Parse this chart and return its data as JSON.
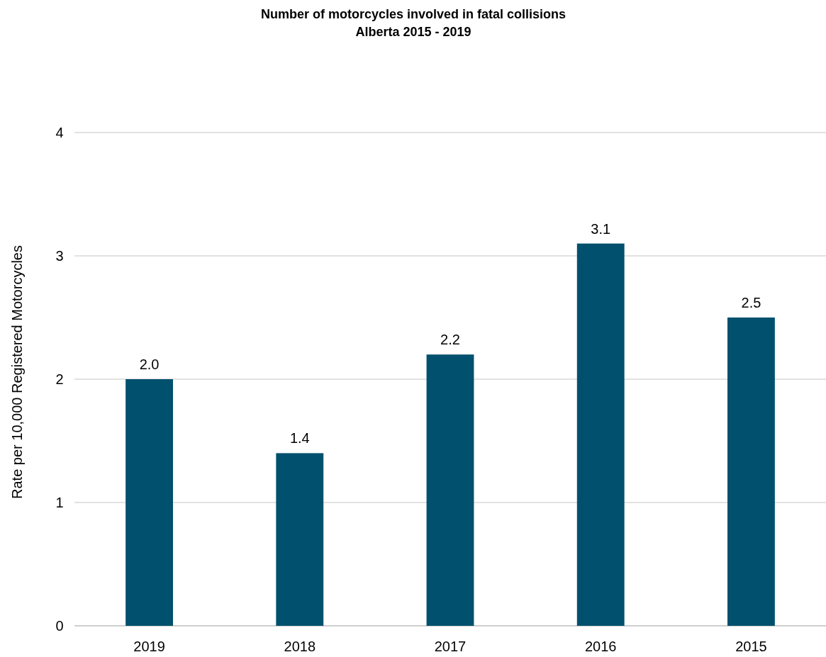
{
  "chart_data": {
    "type": "bar",
    "title": "Number of motorcycles involved in fatal collisions",
    "subtitle": "Alberta 2015 - 2019",
    "ylabel": "Rate per 10,000 Registered Motorcycles",
    "categories": [
      "2019",
      "2018",
      "2017",
      "2016",
      "2015"
    ],
    "values": [
      2.0,
      1.4,
      2.2,
      3.1,
      2.5
    ],
    "color": "#00506e",
    "value_labels": [
      "2.0",
      "1.4",
      "2.2",
      "3.1",
      "2.5"
    ],
    "ylim": [
      0,
      4
    ],
    "yticks": [
      0,
      1,
      2,
      3,
      4
    ],
    "grid": "y"
  }
}
